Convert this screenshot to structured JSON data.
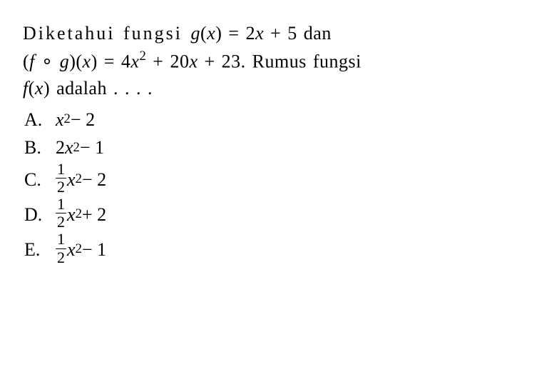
{
  "question": {
    "line1_a": "Diketahui fungsi ",
    "line1_b": "g",
    "line1_c": "(",
    "line1_d": "x",
    "line1_e": ") = 2",
    "line1_f": "x",
    "line1_g": " + 5 dan",
    "line2_a": "(",
    "line2_b": "f",
    "line2_c": " ∘ ",
    "line2_d": "g",
    "line2_e": ")(",
    "line2_f": "x",
    "line2_g": ") = 4",
    "line2_h": "x",
    "line2_i": "2",
    "line2_j": " + 20",
    "line2_k": "x",
    "line2_l": " + 23. Rumus fungsi",
    "line3_a": "f",
    "line3_b": "(",
    "line3_c": "x",
    "line3_d": ") adalah . . . .",
    "fontsize_pt": 20,
    "color": "#000000",
    "background": "#ffffff"
  },
  "options": {
    "A": {
      "letter": "A.",
      "t1": "x",
      "sup": "2",
      "t2": " − 2"
    },
    "B": {
      "letter": "B.",
      "t1": "2",
      "t2": "x",
      "sup": "2",
      "t3": " − 1"
    },
    "C": {
      "letter": "C.",
      "num": "1",
      "den": "2",
      "t1": "x",
      "sup": "2",
      "t2": " − 2"
    },
    "D": {
      "letter": "D.",
      "num": "1",
      "den": "2",
      "t1": "x",
      "sup": "2",
      "t2": " + 2"
    },
    "E": {
      "letter": "E.",
      "num": "1",
      "den": "2",
      "t1": "x",
      "sup": "2",
      "t2": " − 1"
    }
  }
}
